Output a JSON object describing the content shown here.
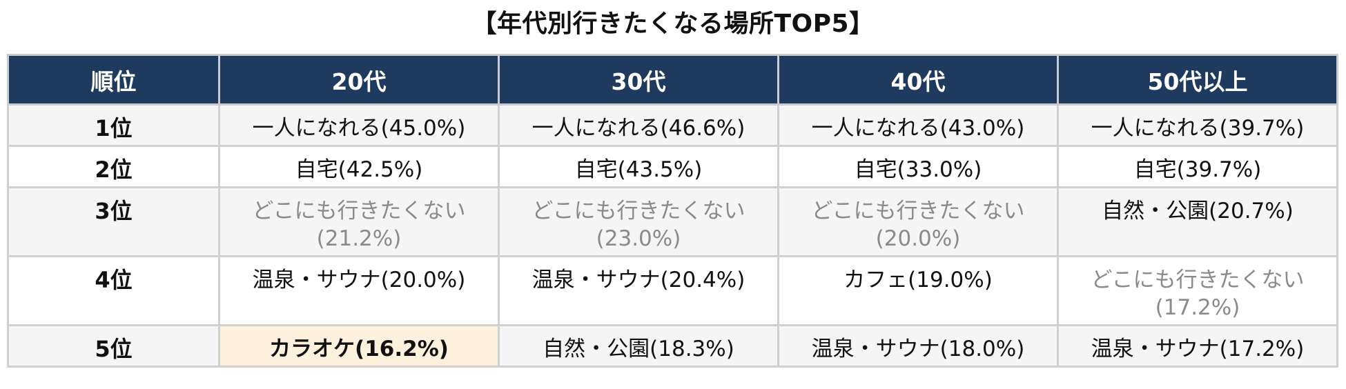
{
  "title": "【年代別行きたくなる場所TOP5】",
  "table": {
    "headers": [
      "順位",
      "20代",
      "30代",
      "40代",
      "50代以上"
    ],
    "rows": [
      {
        "rank": "1位",
        "cells": [
          {
            "place": "一人になれる",
            "pct": "(45.0%)"
          },
          {
            "place": "一人になれる",
            "pct": "(46.6%)"
          },
          {
            "place": "一人になれる",
            "pct": "(43.0%)"
          },
          {
            "place": "一人になれる",
            "pct": "(39.7%)"
          }
        ]
      },
      {
        "rank": "2位",
        "cells": [
          {
            "place": "自宅",
            "pct": "(42.5%)"
          },
          {
            "place": "自宅",
            "pct": "(43.5%)"
          },
          {
            "place": "自宅",
            "pct": "(33.0%)"
          },
          {
            "place": "自宅",
            "pct": "(39.7%)"
          }
        ]
      },
      {
        "rank": "3位",
        "cells": [
          {
            "place": "どこにも行きたくない",
            "pct": "(21.2%)"
          },
          {
            "place": "どこにも行きたくない",
            "pct": "(23.0%)"
          },
          {
            "place": "どこにも行きたくない",
            "pct": "(20.0%)"
          },
          {
            "place": "自然・公園",
            "pct": "(20.7%)"
          }
        ]
      },
      {
        "rank": "4位",
        "cells": [
          {
            "place": "温泉・サウナ",
            "pct": "(20.0%)"
          },
          {
            "place": "温泉・サウナ",
            "pct": "(20.4%)"
          },
          {
            "place": "カフェ",
            "pct": "(19.0%)"
          },
          {
            "place": "どこにも行きたくない",
            "pct": "(17.2%)"
          }
        ]
      },
      {
        "rank": "5位",
        "cells": [
          {
            "place": "カラオケ",
            "pct": "(16.2%)"
          },
          {
            "place": "自然・公園",
            "pct": "(18.3%)"
          },
          {
            "place": "温泉・サウナ",
            "pct": "(18.0%)"
          },
          {
            "place": "温泉・サウナ",
            "pct": "(17.2%)"
          }
        ]
      }
    ]
  },
  "colors": {
    "header_bg": "#1e3a5f",
    "header_text": "#ffffff",
    "row_alt_bg": "#f5f5f5",
    "highlight_bg": "#fdf0dd",
    "muted_text": "#8a8a8a",
    "border": "#d0d0d0"
  }
}
